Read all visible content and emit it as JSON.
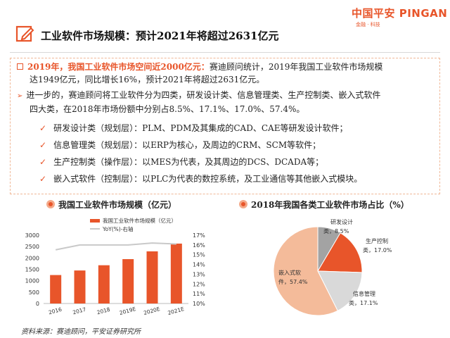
{
  "brand": {
    "logo_text": "中国平安 PINGAN",
    "logo_sub": "金融 · 科技",
    "accent": "#e8552a",
    "accent_light": "#f4a989"
  },
  "page_title": "工业软件市场规模：预计2021年将超过2631亿元",
  "para1": {
    "highlight": "2019年，我国工业软件市场空间近2000亿元：",
    "line1_rest": "赛迪顾问统计，2019年我国工业软件市场规模",
    "line2": "达1949亿元，同比增长16%，预计2021年将超过2631亿元。"
  },
  "para2": {
    "line1": "进一步的，赛迪顾问将工业软件分为四类，研发设计类、信息管理类、生产控制类、嵌入式软件",
    "line2": "四大类，在2018年市场份额中分别占8.5%、17.1%、17.0%、57.4%。"
  },
  "checklist": [
    "研发设计类（规划层）：PLM、PDM及其集成的CAD、CAE等研发设计软件；",
    "信息管理类（规划层）：以ERP为核心，及周边的CRM、SCM等软件；",
    "生产控制类（操作层）：以MES为代表，及其周边的DCS、DCADA等；",
    "嵌入式软件（控制层）：以PLC为代表的数控系统，及工业通信等其他嵌入式模块。"
  ],
  "left_chart_title": "我国工业软件市场规模（亿元）",
  "right_chart_title": "2018年我国各类工业软件市场占比（%）",
  "chart_data": [
    {
      "type": "bar",
      "categories": [
        "2016",
        "2017",
        "2018",
        "2019E",
        "2020E",
        "2021E"
      ],
      "series": [
        {
          "name": "我国工业软件市场规模（亿元）",
          "type": "bar",
          "values": [
            1250,
            1450,
            1680,
            1949,
            2290,
            2631
          ],
          "color": "#e8552a",
          "axis": "left"
        },
        {
          "name": "YoY(%)-右轴",
          "type": "line",
          "values": [
            15.5,
            16.0,
            16.0,
            16.0,
            16.2,
            16.1
          ],
          "color": "#c9c9c9",
          "axis": "right"
        }
      ],
      "ylim": [
        0,
        3000
      ],
      "yticks": [
        "0",
        "500",
        "1000",
        "1500",
        "2000",
        "2500",
        "3000"
      ],
      "y2lim": [
        10,
        17
      ],
      "y2ticks": [
        "10%",
        "11%",
        "12%",
        "13%",
        "14%",
        "15%",
        "16%",
        "17%"
      ],
      "legend": "top"
    },
    {
      "type": "pie",
      "slices": [
        {
          "label": "研发设计类",
          "pct_label": "8.5%",
          "value": 8.5,
          "color": "#a3a3a3"
        },
        {
          "label": "生产控制类",
          "pct_label": "17.0%",
          "value": 17.0,
          "color": "#e8552a"
        },
        {
          "label": "信息管理类",
          "pct_label": "17.1%",
          "value": 17.1,
          "color": "#d9d9d9"
        },
        {
          "label": "嵌入式软件",
          "pct_label": "57.4%",
          "value": 57.4,
          "color": "#f4bb9a"
        }
      ]
    }
  ],
  "source": "资料来源：赛迪顾问，平安证券研究所"
}
